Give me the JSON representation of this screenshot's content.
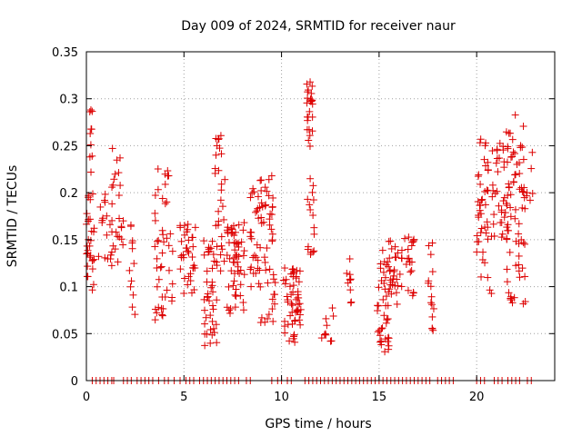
{
  "chart_data": {
    "type": "scatter",
    "title": "Day 009 of 2024, SRMTID for receiver naur",
    "xlabel": "GPS time / hours",
    "ylabel": "SRMTID / TECUs",
    "xlim": [
      0,
      24
    ],
    "ylim": [
      0,
      0.35
    ],
    "x_ticks": [
      0,
      5,
      10,
      15,
      20
    ],
    "x_tick_labels": [
      "0",
      "5",
      "10",
      "15",
      "20"
    ],
    "y_ticks": [
      0,
      0.05,
      0.1,
      0.15,
      0.2,
      0.25,
      0.3,
      0.35
    ],
    "y_tick_labels": [
      "0",
      "0.05",
      "0.1",
      "0.15",
      "0.2",
      "0.25",
      "0.3",
      "0.35"
    ],
    "grid": true,
    "marker": "+",
    "series": [
      {
        "name": "SRMTID",
        "color": "#dd0000",
        "clusters": [
          {
            "x": [
              0.0,
              0.4
            ],
            "y": [
              0.09,
              0.2
            ],
            "n": 30
          },
          {
            "x": [
              0.15,
              0.3
            ],
            "y": [
              0.22,
              0.29
            ],
            "n": 10
          },
          {
            "x": [
              0.6,
              1.1
            ],
            "y": [
              0.12,
              0.2
            ],
            "n": 12
          },
          {
            "x": [
              1.2,
              1.9
            ],
            "y": [
              0.12,
              0.25
            ],
            "n": 30
          },
          {
            "x": [
              2.1,
              2.5
            ],
            "y": [
              0.07,
              0.17
            ],
            "n": 12
          },
          {
            "x": [
              3.5,
              4.5
            ],
            "y": [
              0.06,
              0.23
            ],
            "n": 45
          },
          {
            "x": [
              4.8,
              5.6
            ],
            "y": [
              0.09,
              0.17
            ],
            "n": 35
          },
          {
            "x": [
              6.0,
              6.7
            ],
            "y": [
              0.035,
              0.15
            ],
            "n": 40
          },
          {
            "x": [
              6.6,
              7.1
            ],
            "y": [
              0.11,
              0.265
            ],
            "n": 30
          },
          {
            "x": [
              7.2,
              8.1
            ],
            "y": [
              0.07,
              0.17
            ],
            "n": 55
          },
          {
            "x": [
              8.4,
              9.0
            ],
            "y": [
              0.1,
              0.21
            ],
            "n": 30
          },
          {
            "x": [
              8.9,
              9.7
            ],
            "y": [
              0.06,
              0.22
            ],
            "n": 45
          },
          {
            "x": [
              10.1,
              11.0
            ],
            "y": [
              0.04,
              0.12
            ],
            "n": 55
          },
          {
            "x": [
              11.3,
              11.7
            ],
            "y": [
              0.13,
              0.325
            ],
            "n": 40
          },
          {
            "x": [
              12.0,
              12.7
            ],
            "y": [
              0.04,
              0.08
            ],
            "n": 10
          },
          {
            "x": [
              13.3,
              13.6
            ],
            "y": [
              0.08,
              0.135
            ],
            "n": 10
          },
          {
            "x": [
              14.9,
              15.5
            ],
            "y": [
              0.03,
              0.14
            ],
            "n": 40
          },
          {
            "x": [
              15.5,
              16.2
            ],
            "y": [
              0.08,
              0.15
            ],
            "n": 30
          },
          {
            "x": [
              16.3,
              16.8
            ],
            "y": [
              0.09,
              0.155
            ],
            "n": 20
          },
          {
            "x": [
              17.5,
              17.8
            ],
            "y": [
              0.05,
              0.15
            ],
            "n": 15
          },
          {
            "x": [
              20.0,
              20.8
            ],
            "y": [
              0.09,
              0.26
            ],
            "n": 45
          },
          {
            "x": [
              20.8,
              21.6
            ],
            "y": [
              0.15,
              0.26
            ],
            "n": 35
          },
          {
            "x": [
              21.5,
              22.5
            ],
            "y": [
              0.08,
              0.285
            ],
            "n": 70
          },
          {
            "x": [
              22.5,
              22.9
            ],
            "y": [
              0.19,
              0.245
            ],
            "n": 6
          }
        ],
        "zero_points_x": [
          0.3,
          0.5,
          0.7,
          0.9,
          1.1,
          1.3,
          1.4,
          1.9,
          2.1,
          2.3,
          2.6,
          2.8,
          3.0,
          3.2,
          3.4,
          3.7,
          4.0,
          4.2,
          4.5,
          4.8,
          5.1,
          5.3,
          5.5,
          5.8,
          6.0,
          6.2,
          6.4,
          6.6,
          6.8,
          7.0,
          7.2,
          7.4,
          7.6,
          7.8,
          8.2,
          8.4,
          9.5,
          9.8,
          10.0,
          10.3,
          10.5,
          11.2,
          11.4,
          11.6,
          11.8,
          12.0,
          12.2,
          12.4,
          12.6,
          12.8,
          13.0,
          13.2,
          13.4,
          13.6,
          13.8,
          14.0,
          14.2,
          14.4,
          14.6,
          14.8,
          15.0,
          15.2,
          15.4,
          15.6,
          15.8,
          16.0,
          16.2,
          16.4,
          16.6,
          16.8,
          17.0,
          17.2,
          17.4,
          17.6,
          18.0,
          18.2,
          18.4,
          18.6,
          18.8,
          20.0,
          20.2,
          20.4,
          20.9,
          21.1,
          21.3,
          21.6,
          21.8,
          22.0,
          22.2,
          22.6,
          22.8
        ]
      }
    ]
  }
}
